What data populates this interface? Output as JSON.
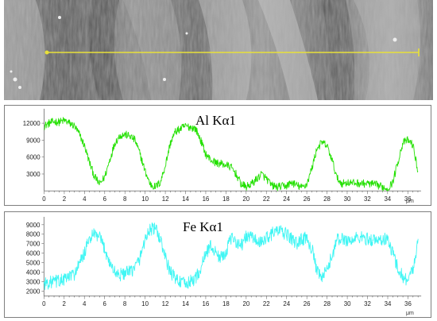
{
  "image": {
    "description_free": true,
    "scan_line_color": "#e8e03a"
  },
  "chart_data": [
    {
      "type": "line",
      "title": "Al Kα1",
      "xlabel": "μm",
      "ylabel": "",
      "color": "#22e000",
      "x_ticks": [
        0,
        2,
        4,
        6,
        8,
        10,
        12,
        14,
        16,
        18,
        20,
        22,
        24,
        26,
        28,
        30,
        32,
        34,
        36
      ],
      "y_ticks": [
        3000,
        6000,
        9000,
        12000
      ],
      "xlim": [
        0,
        37
      ],
      "ylim": [
        0,
        14000
      ],
      "noise": 700,
      "series": [
        {
          "x": [
            0,
            0.5,
            1,
            1.5,
            2,
            2.5,
            3,
            3.5,
            4,
            4.5,
            5,
            5.5,
            6,
            6.5,
            7,
            7.5,
            8,
            8.5,
            9,
            9.5,
            10,
            10.5,
            11,
            11.5,
            12,
            12.5,
            13,
            13.5,
            14,
            14.5,
            15,
            15.5,
            16,
            16.5,
            17,
            17.5,
            18,
            18.5,
            19,
            19.5,
            20,
            20.5,
            21,
            21.5,
            22,
            22.5,
            23,
            23.5,
            24,
            24.5,
            25,
            25.5,
            26,
            26.5,
            27,
            27.5,
            28,
            28.5,
            29,
            29.5,
            30,
            30.5,
            31,
            31.5,
            32,
            32.5,
            33,
            33.5,
            34,
            34.5,
            35,
            35.5,
            36,
            36.5,
            37
          ],
          "y": [
            11500,
            12000,
            12300,
            12200,
            12500,
            12000,
            11500,
            10000,
            8000,
            5000,
            2500,
            1200,
            2500,
            5500,
            8500,
            9800,
            10000,
            9700,
            9000,
            6500,
            3500,
            1200,
            700,
            1500,
            4500,
            8500,
            10500,
            11000,
            11500,
            11300,
            11000,
            9000,
            6500,
            5500,
            5000,
            4800,
            4600,
            4200,
            3000,
            1200,
            700,
            1200,
            2000,
            3000,
            2200,
            1000,
            700,
            800,
            900,
            1500,
            1000,
            600,
            1200,
            4000,
            7500,
            8600,
            8000,
            5500,
            2200,
            1300,
            1500,
            1400,
            1400,
            1300,
            1300,
            1200,
            1000,
            700,
            400,
            1500,
            5000,
            8500,
            9000,
            8200,
            3500
          ]
        }
      ]
    },
    {
      "type": "line",
      "title": "Fe Kα1",
      "xlabel": "μm",
      "ylabel": "",
      "color": "#3ff6f4",
      "x_ticks": [
        0,
        2,
        4,
        6,
        8,
        10,
        12,
        14,
        16,
        18,
        20,
        22,
        24,
        26,
        28,
        30,
        32,
        34,
        36
      ],
      "y_ticks": [
        2000,
        3000,
        4000,
        5000,
        6000,
        7000,
        8000,
        9000
      ],
      "xlim": [
        0,
        37
      ],
      "ylim": [
        1500,
        9500
      ],
      "noise": 700,
      "series": [
        {
          "x": [
            0,
            0.5,
            1,
            1.5,
            2,
            2.5,
            3,
            3.5,
            4,
            4.5,
            5,
            5.5,
            6,
            6.5,
            7,
            7.5,
            8,
            8.5,
            9,
            9.5,
            10,
            10.5,
            11,
            11.5,
            12,
            12.5,
            13,
            13.5,
            14,
            14.5,
            15,
            15.5,
            16,
            16.5,
            17,
            17.5,
            18,
            18.5,
            19,
            19.5,
            20,
            20.5,
            21,
            21.5,
            22,
            22.5,
            23,
            23.5,
            24,
            24.5,
            25,
            25.5,
            26,
            26.5,
            27,
            27.5,
            28,
            28.5,
            29,
            29.5,
            30,
            30.5,
            31,
            31.5,
            32,
            32.5,
            33,
            33.5,
            34,
            34.5,
            35,
            35.5,
            36,
            36.5,
            37
          ],
          "y": [
            2800,
            2900,
            3000,
            3100,
            3200,
            3500,
            3800,
            4800,
            6000,
            7500,
            8000,
            7600,
            6500,
            5000,
            4000,
            3700,
            3900,
            4000,
            4500,
            5500,
            7500,
            8500,
            8600,
            7500,
            5500,
            4000,
            3400,
            3000,
            2700,
            3000,
            3400,
            4300,
            6000,
            6800,
            6000,
            5500,
            6200,
            7500,
            7300,
            6800,
            7700,
            7800,
            7300,
            7000,
            7700,
            8000,
            8400,
            8200,
            8000,
            7500,
            7000,
            7500,
            7600,
            6500,
            4000,
            3400,
            4200,
            5800,
            7400,
            7500,
            7400,
            7300,
            7700,
            7600,
            7500,
            7400,
            7300,
            7500,
            7400,
            6000,
            4500,
            3500,
            3200,
            4300,
            7500
          ]
        }
      ]
    }
  ]
}
